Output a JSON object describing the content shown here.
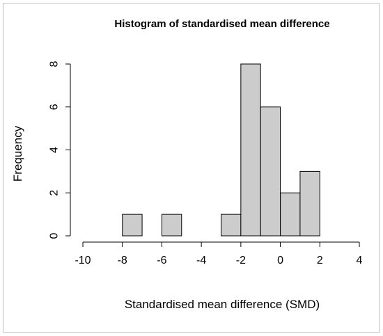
{
  "chart_data": {
    "type": "bar",
    "title": "Histogram of standardised mean difference",
    "xlabel": "Standardised mean difference (SMD)",
    "ylabel": "Frequency",
    "bin_edges": [
      -8,
      -7,
      -6,
      -5,
      -4,
      -3,
      -2,
      -1,
      0,
      1,
      2
    ],
    "counts": [
      1,
      0,
      1,
      0,
      0,
      1,
      8,
      6,
      2,
      3
    ],
    "xlim": [
      -10,
      4
    ],
    "ylim": [
      0,
      8
    ],
    "x_ticks": [
      -10,
      -8,
      -6,
      -4,
      -2,
      0,
      2,
      4
    ],
    "y_ticks": [
      0,
      2,
      4,
      6,
      8
    ],
    "bar_color": "#cccccc",
    "edge_color": "#000000",
    "grid": false
  }
}
